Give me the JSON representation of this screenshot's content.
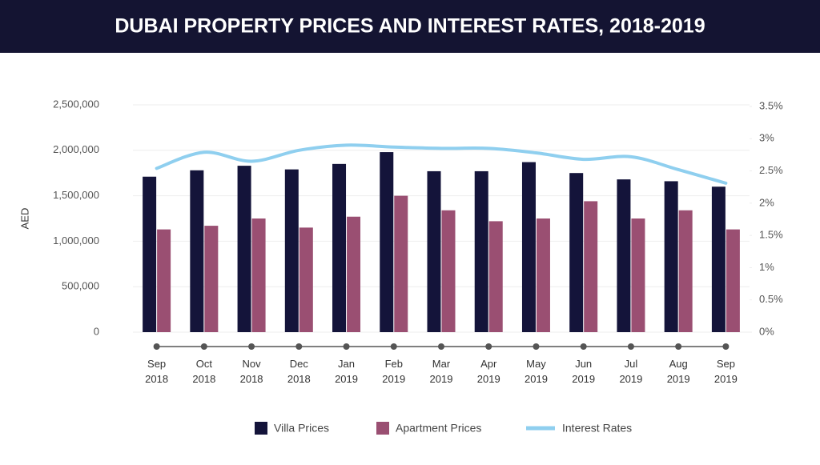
{
  "chart_data": {
    "type": "bar",
    "title": "DUBAI PROPERTY PRICES AND INTEREST RATES, 2018-2019",
    "y_label": "AED",
    "categories": [
      "Sep 2018",
      "Oct 2018",
      "Nov 2018",
      "Dec 2018",
      "Jan 2019",
      "Feb 2019",
      "Mar 2019",
      "Apr 2019",
      "May 2019",
      "Jun 2019",
      "Jul 2019",
      "Aug 2019",
      "Sep 2019"
    ],
    "series": [
      {
        "name": "Villa Prices",
        "color": "#14143a",
        "values": [
          1710000,
          1780000,
          1830000,
          1790000,
          1850000,
          1980000,
          1770000,
          1770000,
          1870000,
          1750000,
          1680000,
          1660000,
          1600000
        ]
      },
      {
        "name": "Apartment Prices",
        "color": "#9a4f72",
        "values": [
          1130000,
          1170000,
          1250000,
          1150000,
          1270000,
          1500000,
          1340000,
          1220000,
          1250000,
          1440000,
          1250000,
          1340000,
          1130000
        ]
      },
      {
        "name": "Interest Rates",
        "color": "#8fcfef",
        "type": "line",
        "axis": "y2",
        "values": [
          2.54,
          2.79,
          2.65,
          2.82,
          2.9,
          2.87,
          2.85,
          2.85,
          2.78,
          2.68,
          2.72,
          2.52,
          2.31
        ]
      }
    ],
    "ylim": [
      0,
      2500000
    ],
    "yticks": [
      0,
      {
        "value": 500000,
        "label": "500,000"
      },
      {
        "value": 1000000,
        "label": "1,000,000"
      },
      {
        "value": 1500000,
        "label": "1,500,000"
      },
      {
        "value": 2000000,
        "label": "2,000,000"
      },
      {
        "value": 2500000,
        "label": "2,500,000"
      }
    ],
    "y2lim": [
      0,
      3.5
    ],
    "y2ticks": [
      {
        "value": 0,
        "label": "0%"
      },
      {
        "value": 0.5,
        "label": "0.5%"
      },
      {
        "value": 1,
        "label": "1%"
      },
      {
        "value": 1.5,
        "label": "1.5%"
      },
      {
        "value": 2,
        "label": "2%"
      },
      {
        "value": 2.5,
        "label": "2.5%"
      },
      {
        "value": 3,
        "label": "3%"
      },
      {
        "value": 3.5,
        "label": "3.5%"
      }
    ],
    "grid": true,
    "legend": "bottom"
  }
}
